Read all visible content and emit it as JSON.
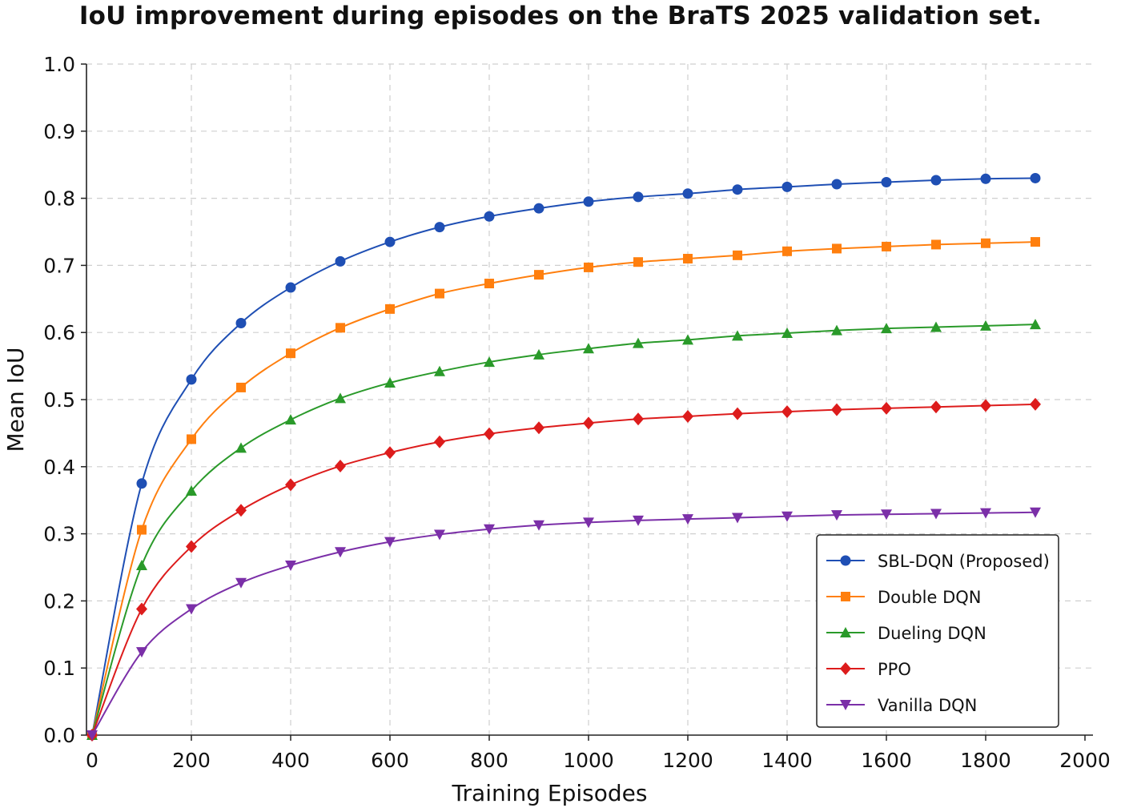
{
  "chart_data": {
    "type": "line",
    "title": "IoU improvement during episodes on the BraTS 2025 validation set.",
    "xlabel": "Training Episodes",
    "ylabel": "Mean IoU",
    "xlim": [
      0,
      2000
    ],
    "ylim": [
      0.0,
      1.0
    ],
    "x_ticks": [
      "0",
      "200",
      "400",
      "600",
      "800",
      "1000",
      "1200",
      "1400",
      "1600",
      "1800",
      "2000"
    ],
    "y_ticks": [
      "0.0",
      "0.1",
      "0.2",
      "0.3",
      "0.4",
      "0.5",
      "0.6",
      "0.7",
      "0.8",
      "0.9",
      "1.0"
    ],
    "grid": true,
    "legend_position": "bottom-right",
    "x": [
      0,
      100,
      200,
      300,
      400,
      500,
      600,
      700,
      800,
      900,
      1000,
      1100,
      1200,
      1300,
      1400,
      1500,
      1600,
      1700,
      1800,
      1900
    ],
    "series": [
      {
        "name": "SBL-DQN (Proposed)",
        "color": "#1f4fb4",
        "marker": "circle",
        "values": [
          0.0,
          0.375,
          0.53,
          0.614,
          0.667,
          0.706,
          0.735,
          0.757,
          0.773,
          0.785,
          0.795,
          0.802,
          0.807,
          0.813,
          0.817,
          0.821,
          0.824,
          0.827,
          0.829,
          0.83
        ]
      },
      {
        "name": "Double DQN",
        "color": "#ff7f0e",
        "marker": "square",
        "values": [
          0.0,
          0.306,
          0.441,
          0.518,
          0.569,
          0.607,
          0.635,
          0.658,
          0.673,
          0.686,
          0.697,
          0.705,
          0.71,
          0.715,
          0.721,
          0.725,
          0.728,
          0.731,
          0.733,
          0.735
        ]
      },
      {
        "name": "Dueling DQN",
        "color": "#2a9a2a",
        "marker": "triangle-up",
        "values": [
          0.0,
          0.253,
          0.364,
          0.428,
          0.47,
          0.502,
          0.525,
          0.542,
          0.556,
          0.567,
          0.576,
          0.584,
          0.589,
          0.595,
          0.599,
          0.603,
          0.606,
          0.608,
          0.61,
          0.612
        ]
      },
      {
        "name": "PPO",
        "color": "#dd1c1c",
        "marker": "diamond",
        "values": [
          0.0,
          0.188,
          0.281,
          0.335,
          0.373,
          0.401,
          0.421,
          0.437,
          0.449,
          0.458,
          0.465,
          0.471,
          0.475,
          0.479,
          0.482,
          0.485,
          0.487,
          0.489,
          0.491,
          0.493
        ]
      },
      {
        "name": "Vanilla DQN",
        "color": "#7b2fa8",
        "marker": "triangle-down",
        "values": [
          0.0,
          0.124,
          0.188,
          0.227,
          0.253,
          0.273,
          0.288,
          0.299,
          0.307,
          0.313,
          0.317,
          0.32,
          0.322,
          0.324,
          0.326,
          0.328,
          0.329,
          0.33,
          0.331,
          0.332
        ]
      }
    ]
  }
}
